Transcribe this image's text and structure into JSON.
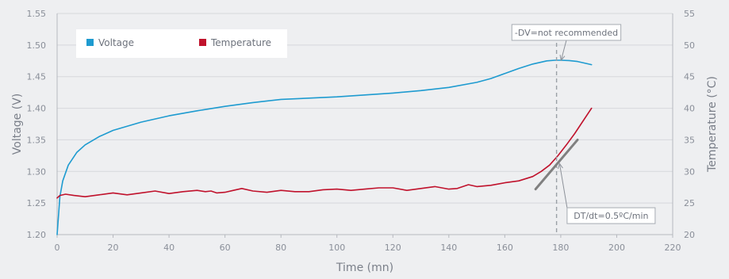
{
  "chart_data": {
    "type": "line",
    "xlabel": "Time (mn)",
    "ylabel_left": "Voltage (V)",
    "ylabel_right": "Temperature (°C)",
    "xlim": [
      0,
      220
    ],
    "ylim_left": [
      1.2,
      1.55
    ],
    "ylim_right": [
      20,
      55
    ],
    "x_ticks": [
      0,
      20,
      40,
      60,
      80,
      100,
      120,
      140,
      160,
      180,
      200,
      220
    ],
    "y_left_ticks": [
      "1.20",
      "1.25",
      "1.30",
      "1.35",
      "1.40",
      "1.45",
      "1.50",
      "1.55"
    ],
    "y_right_ticks": [
      "20",
      "25",
      "30",
      "35",
      "40",
      "45",
      "50",
      "55"
    ],
    "grid": "horizontal",
    "legend": [
      {
        "name": "Voltage",
        "color": "#1e9bd0"
      },
      {
        "name": "Temperature",
        "color": "#c0122c"
      }
    ],
    "series": [
      {
        "name": "Voltage",
        "axis": "left",
        "color": "#1e9bd0",
        "x": [
          0,
          1,
          2,
          4,
          7,
          10,
          15,
          20,
          30,
          40,
          50,
          60,
          70,
          80,
          90,
          100,
          110,
          120,
          130,
          140,
          150,
          155,
          160,
          165,
          170,
          175,
          178,
          180,
          183,
          186,
          189,
          191
        ],
        "y": [
          1.2,
          1.26,
          1.285,
          1.31,
          1.33,
          1.342,
          1.355,
          1.365,
          1.378,
          1.388,
          1.396,
          1.403,
          1.409,
          1.414,
          1.416,
          1.418,
          1.421,
          1.424,
          1.428,
          1.433,
          1.441,
          1.447,
          1.455,
          1.463,
          1.47,
          1.475,
          1.476,
          1.476,
          1.4755,
          1.474,
          1.471,
          1.469
        ]
      },
      {
        "name": "Temperature",
        "axis": "right",
        "color": "#c0122c",
        "x": [
          0,
          1,
          3,
          6,
          10,
          15,
          20,
          25,
          30,
          35,
          40,
          45,
          50,
          53,
          55,
          57,
          60,
          63,
          66,
          70,
          75,
          80,
          85,
          90,
          95,
          100,
          105,
          110,
          115,
          120,
          125,
          130,
          135,
          140,
          143,
          147,
          150,
          155,
          160,
          165,
          170,
          173,
          176,
          179,
          182,
          185,
          188,
          191
        ],
        "y": [
          25.8,
          26.2,
          26.4,
          26.2,
          26.0,
          26.3,
          26.6,
          26.3,
          26.6,
          26.9,
          26.5,
          26.8,
          27.0,
          26.8,
          26.9,
          26.6,
          26.7,
          27.0,
          27.3,
          26.9,
          26.7,
          27.0,
          26.8,
          26.8,
          27.1,
          27.2,
          27.0,
          27.2,
          27.4,
          27.4,
          27.0,
          27.3,
          27.6,
          27.2,
          27.3,
          27.9,
          27.6,
          27.8,
          28.2,
          28.5,
          29.2,
          30.0,
          31.0,
          32.5,
          34.2,
          36.0,
          38.0,
          40.0
        ]
      }
    ],
    "markers": [
      {
        "type": "vline",
        "x": 178.5,
        "style": "dashed",
        "color": "#9aa0a6"
      }
    ],
    "tangent": {
      "axis": "right",
      "from": [
        171,
        27.2
      ],
      "to": [
        186,
        35.0
      ],
      "color": "#808080"
    },
    "annotations": [
      {
        "text": "-DV=not recommended",
        "target": [
          179,
          1.476
        ],
        "target_axis": "left",
        "box_at": [
          182,
          1.52
        ]
      },
      {
        "text": "DT/dt=0.5ºC/min",
        "target": [
          179,
          31.5
        ],
        "target_axis": "right",
        "box_at": [
          198,
          23.0
        ]
      }
    ]
  }
}
